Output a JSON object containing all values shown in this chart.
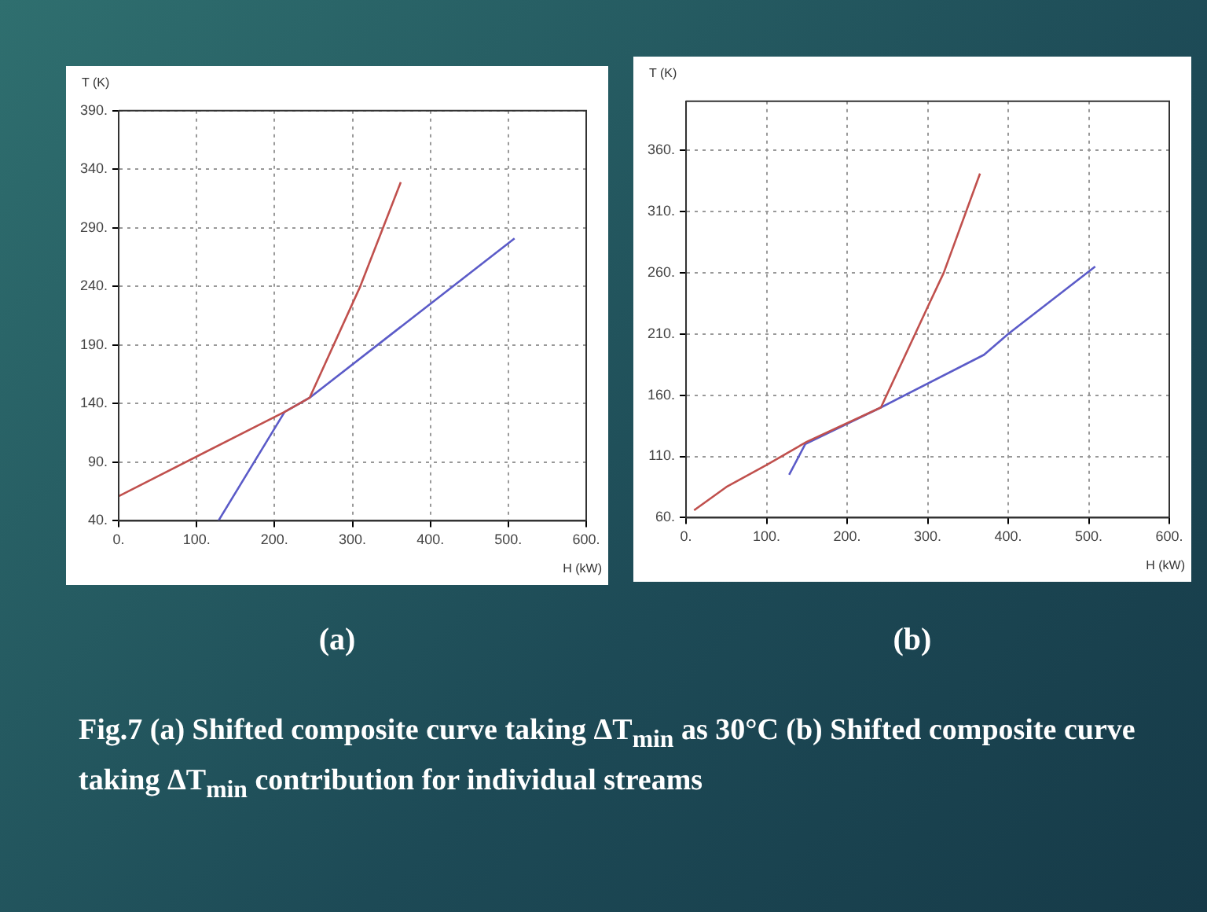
{
  "chart_data": [
    {
      "type": "line",
      "title": "(a)",
      "xlabel": "H (kW)",
      "ylabel": "T (K)",
      "xlim": [
        0,
        600
      ],
      "ylim": [
        40,
        390
      ],
      "xticks": [
        {
          "value": 0,
          "label": "0."
        },
        {
          "value": 100,
          "label": "100."
        },
        {
          "value": 200,
          "label": "200."
        },
        {
          "value": 300,
          "label": "300."
        },
        {
          "value": 400,
          "label": "400."
        },
        {
          "value": 500,
          "label": "500."
        },
        {
          "value": 600,
          "label": "600."
        }
      ],
      "yticks": [
        {
          "value": 40,
          "label": "40."
        },
        {
          "value": 90,
          "label": "90."
        },
        {
          "value": 140,
          "label": "140."
        },
        {
          "value": 190,
          "label": "190."
        },
        {
          "value": 240,
          "label": "240."
        },
        {
          "value": 290,
          "label": "290."
        },
        {
          "value": 340,
          "label": "340."
        },
        {
          "value": 390,
          "label": "390."
        }
      ],
      "grid": true,
      "marker": "none",
      "line_style": "solid",
      "series": [
        {
          "color": "#c0504d",
          "x": [
            0,
            213,
            245,
            310,
            362
          ],
          "values": [
            61,
            133,
            145,
            240,
            329
          ]
        },
        {
          "color": "#5b5bc8",
          "x": [
            128,
            213,
            245,
            508
          ],
          "values": [
            40,
            133,
            145,
            281
          ]
        }
      ],
      "annotations": [
        "Fig.7 (a) Shifted composite curve taking ΔT$_{min}$ as 30°C  (b) Shifted composite curve taking ΔT$_{min}$  contribution for individual streams"
      ]
    },
    {
      "type": "line",
      "title": "(b)",
      "xlabel": "H (kW)",
      "ylabel": "T (K)",
      "xlim": [
        0,
        600
      ],
      "ylim": [
        60,
        400
      ],
      "xticks": [
        {
          "value": 0,
          "label": "0."
        },
        {
          "value": 100,
          "label": "100."
        },
        {
          "value": 200,
          "label": "200."
        },
        {
          "value": 300,
          "label": "300."
        },
        {
          "value": 400,
          "label": "400."
        },
        {
          "value": 500,
          "label": "500."
        },
        {
          "value": 600,
          "label": "600."
        }
      ],
      "yticks": [
        {
          "value": 60,
          "label": "60."
        },
        {
          "value": 110,
          "label": "110."
        },
        {
          "value": 160,
          "label": "160."
        },
        {
          "value": 210,
          "label": "210."
        },
        {
          "value": 260,
          "label": "260."
        },
        {
          "value": 310,
          "label": "310."
        },
        {
          "value": 360,
          "label": "360."
        }
      ],
      "grid": true,
      "marker": "none",
      "line_style": "solid",
      "series": [
        {
          "color": "#c0504d",
          "x": [
            10,
            50,
            100,
            150,
            242,
            300,
            320,
            365
          ],
          "values": [
            66,
            85,
            103,
            122,
            150,
            232,
            260,
            341
          ]
        },
        {
          "color": "#5b5bc8",
          "x": [
            128,
            148,
            242,
            370,
            400,
            508
          ],
          "values": [
            95,
            120,
            150,
            193,
            210,
            265
          ]
        }
      ]
    }
  ]
}
